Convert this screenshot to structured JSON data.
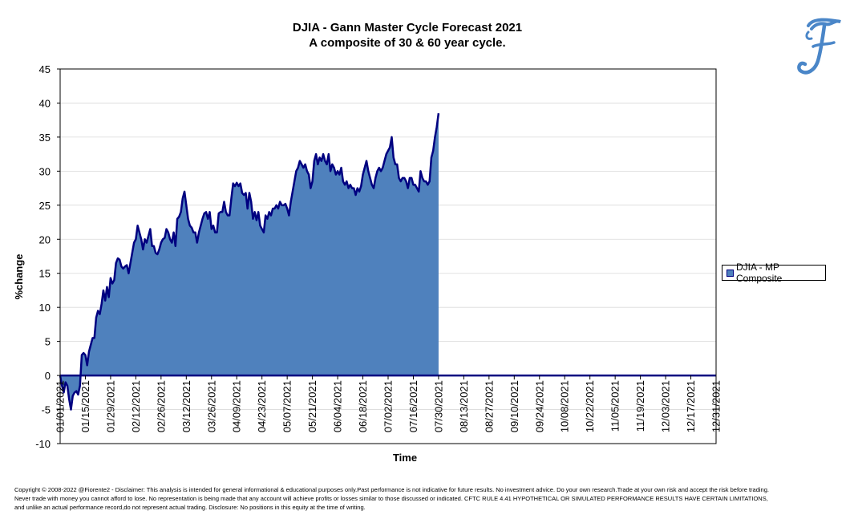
{
  "chart_data": {
    "type": "area",
    "title": "DJIA - Gann Master Cycle Forecast 2021",
    "subtitle": "A composite of 30 & 60 year cycle.",
    "xlabel": "Time",
    "ylabel": "%change",
    "ylim": [
      -10,
      45
    ],
    "yticks": [
      "45",
      "40",
      "35",
      "30",
      "25",
      "20",
      "15",
      "10",
      "5",
      "0",
      "-5",
      "-10"
    ],
    "xticks": [
      "01/01/2021",
      "01/15/2021",
      "01/29/2021",
      "02/12/2021",
      "02/26/2021",
      "03/12/2021",
      "03/26/2021",
      "04/09/2021",
      "04/23/2021",
      "05/07/2021",
      "05/21/2021",
      "06/04/2021",
      "06/18/2021",
      "07/02/2021",
      "07/16/2021",
      "07/30/2021",
      "08/13/2021",
      "08/27/2021",
      "09/10/2021",
      "09/24/2021",
      "10/08/2021",
      "10/22/2021",
      "11/05/2021",
      "11/19/2021",
      "12/03/2021",
      "12/17/2021",
      "12/31/2021"
    ],
    "legend": "right",
    "grid": true,
    "colors": {
      "fill": "#4f81bd",
      "line": "#000080"
    },
    "series": [
      {
        "name": "DJIA - MP Composite",
        "points": [
          [
            "01/01/2021",
            0
          ],
          [
            "01/02/2021",
            -1.5
          ],
          [
            "01/03/2021",
            -2.5
          ],
          [
            "01/04/2021",
            -1
          ],
          [
            "01/05/2021",
            -1.5
          ],
          [
            "01/06/2021",
            -3.5
          ],
          [
            "01/07/2021",
            -5
          ],
          [
            "01/08/2021",
            -3
          ],
          [
            "01/09/2021",
            -2.5
          ],
          [
            "01/10/2021",
            -2.3
          ],
          [
            "01/11/2021",
            -2.8
          ],
          [
            "01/12/2021",
            -1.5
          ],
          [
            "01/13/2021",
            3
          ],
          [
            "01/14/2021",
            3.3
          ],
          [
            "01/15/2021",
            3
          ],
          [
            "01/16/2021",
            1.5
          ],
          [
            "01/17/2021",
            3.5
          ],
          [
            "01/18/2021",
            4.5
          ],
          [
            "01/19/2021",
            5.5
          ],
          [
            "01/20/2021",
            5.5
          ],
          [
            "01/21/2021",
            8.5
          ],
          [
            "01/22/2021",
            9.5
          ],
          [
            "01/23/2021",
            9
          ],
          [
            "01/24/2021",
            10.5
          ],
          [
            "01/25/2021",
            12.5
          ],
          [
            "01/26/2021",
            11
          ],
          [
            "01/27/2021",
            13
          ],
          [
            "01/28/2021",
            11.5
          ],
          [
            "01/29/2021",
            14.3
          ],
          [
            "01/30/2021",
            13.5
          ],
          [
            "01/31/2021",
            14
          ],
          [
            "02/01/2021",
            16.5
          ],
          [
            "02/02/2021",
            17.2
          ],
          [
            "02/03/2021",
            17
          ],
          [
            "02/04/2021",
            16
          ],
          [
            "02/05/2021",
            15.7
          ],
          [
            "02/06/2021",
            16
          ],
          [
            "02/07/2021",
            16.2
          ],
          [
            "02/08/2021",
            15
          ],
          [
            "02/09/2021",
            16.5
          ],
          [
            "02/10/2021",
            18
          ],
          [
            "02/11/2021",
            19.5
          ],
          [
            "02/12/2021",
            20
          ],
          [
            "02/13/2021",
            22
          ],
          [
            "02/14/2021",
            21
          ],
          [
            "02/15/2021",
            20
          ],
          [
            "02/16/2021",
            18.5
          ],
          [
            "02/17/2021",
            20
          ],
          [
            "02/18/2021",
            19.5
          ],
          [
            "02/19/2021",
            20.5
          ],
          [
            "02/20/2021",
            21.5
          ],
          [
            "02/21/2021",
            19
          ],
          [
            "02/22/2021",
            19
          ],
          [
            "02/23/2021",
            18
          ],
          [
            "02/24/2021",
            17.8
          ],
          [
            "02/25/2021",
            18.5
          ],
          [
            "02/26/2021",
            19.5
          ],
          [
            "02/27/2021",
            20
          ],
          [
            "02/28/2021",
            20.2
          ],
          [
            "03/01/2021",
            21.5
          ],
          [
            "03/02/2021",
            21
          ],
          [
            "03/03/2021",
            20
          ],
          [
            "03/04/2021",
            19.5
          ],
          [
            "03/05/2021",
            21
          ],
          [
            "03/06/2021",
            19
          ],
          [
            "03/07/2021",
            23
          ],
          [
            "03/08/2021",
            23.3
          ],
          [
            "03/09/2021",
            24
          ],
          [
            "03/10/2021",
            26
          ],
          [
            "03/11/2021",
            27
          ],
          [
            "03/12/2021",
            25
          ],
          [
            "03/13/2021",
            23
          ],
          [
            "03/14/2021",
            22
          ],
          [
            "03/15/2021",
            21.7
          ],
          [
            "03/16/2021",
            21
          ],
          [
            "03/17/2021",
            21
          ],
          [
            "03/18/2021",
            19.5
          ],
          [
            "03/19/2021",
            21
          ],
          [
            "03/20/2021",
            22
          ],
          [
            "03/21/2021",
            23
          ],
          [
            "03/22/2021",
            23.8
          ],
          [
            "03/23/2021",
            24
          ],
          [
            "03/24/2021",
            23
          ],
          [
            "03/25/2021",
            24
          ],
          [
            "03/26/2021",
            21.5
          ],
          [
            "03/27/2021",
            22
          ],
          [
            "03/28/2021",
            21
          ],
          [
            "03/29/2021",
            21
          ],
          [
            "03/30/2021",
            23.8
          ],
          [
            "03/31/2021",
            24
          ],
          [
            "04/01/2021",
            24
          ],
          [
            "04/02/2021",
            25.5
          ],
          [
            "04/03/2021",
            24
          ],
          [
            "04/04/2021",
            23.5
          ],
          [
            "04/05/2021",
            23.5
          ],
          [
            "04/06/2021",
            26
          ],
          [
            "04/07/2021",
            28.2
          ],
          [
            "04/08/2021",
            27.8
          ],
          [
            "04/09/2021",
            28.3
          ],
          [
            "04/10/2021",
            27.8
          ],
          [
            "04/11/2021",
            28.2
          ],
          [
            "04/12/2021",
            26.8
          ],
          [
            "04/13/2021",
            26.5
          ],
          [
            "04/14/2021",
            26.8
          ],
          [
            "04/15/2021",
            24.5
          ],
          [
            "04/16/2021",
            26.8
          ],
          [
            "04/17/2021",
            25.5
          ],
          [
            "04/18/2021",
            23
          ],
          [
            "04/19/2021",
            24
          ],
          [
            "04/20/2021",
            22.8
          ],
          [
            "04/21/2021",
            24
          ],
          [
            "04/22/2021",
            22
          ],
          [
            "04/23/2021",
            21.5
          ],
          [
            "04/24/2021",
            21
          ],
          [
            "04/25/2021",
            23.5
          ],
          [
            "04/26/2021",
            23
          ],
          [
            "04/27/2021",
            24
          ],
          [
            "04/28/2021",
            23.5
          ],
          [
            "04/29/2021",
            24.5
          ],
          [
            "04/30/2021",
            24.5
          ],
          [
            "05/01/2021",
            25
          ],
          [
            "05/02/2021",
            24.5
          ],
          [
            "05/03/2021",
            25.5
          ],
          [
            "05/04/2021",
            25
          ],
          [
            "05/05/2021",
            25
          ],
          [
            "05/06/2021",
            25.2
          ],
          [
            "05/07/2021",
            24.5
          ],
          [
            "05/08/2021",
            23.5
          ],
          [
            "05/09/2021",
            25.5
          ],
          [
            "05/10/2021",
            27
          ],
          [
            "05/11/2021",
            28.5
          ],
          [
            "05/12/2021",
            30
          ],
          [
            "05/13/2021",
            30.5
          ],
          [
            "05/14/2021",
            31.5
          ],
          [
            "05/15/2021",
            31
          ],
          [
            "05/16/2021",
            30.5
          ],
          [
            "05/17/2021",
            31
          ],
          [
            "05/18/2021",
            30
          ],
          [
            "05/19/2021",
            29.5
          ],
          [
            "05/20/2021",
            27.5
          ],
          [
            "05/21/2021",
            28.5
          ],
          [
            "05/22/2021",
            31.5
          ],
          [
            "05/23/2021",
            32.5
          ],
          [
            "05/24/2021",
            31
          ],
          [
            "05/25/2021",
            32
          ],
          [
            "05/26/2021",
            31.5
          ],
          [
            "05/27/2021",
            32.5
          ],
          [
            "05/28/2021",
            31.5
          ],
          [
            "05/29/2021",
            31
          ],
          [
            "05/30/2021",
            32.5
          ],
          [
            "05/31/2021",
            30
          ],
          [
            "06/01/2021",
            31
          ],
          [
            "06/02/2021",
            30.5
          ],
          [
            "06/03/2021",
            29.5
          ],
          [
            "06/04/2021",
            30
          ],
          [
            "06/05/2021",
            29.5
          ],
          [
            "06/06/2021",
            30.5
          ],
          [
            "06/07/2021",
            28.5
          ],
          [
            "06/08/2021",
            28
          ],
          [
            "06/09/2021",
            28.5
          ],
          [
            "06/10/2021",
            27.5
          ],
          [
            "06/11/2021",
            28
          ],
          [
            "06/12/2021",
            27.5
          ],
          [
            "06/13/2021",
            27.5
          ],
          [
            "06/14/2021",
            26.5
          ],
          [
            "06/15/2021",
            27.5
          ],
          [
            "06/16/2021",
            27
          ],
          [
            "06/17/2021",
            27.8
          ],
          [
            "06/18/2021",
            29.5
          ],
          [
            "06/19/2021",
            30.5
          ],
          [
            "06/20/2021",
            31.5
          ],
          [
            "06/21/2021",
            30
          ],
          [
            "06/22/2021",
            29
          ],
          [
            "06/23/2021",
            28
          ],
          [
            "06/24/2021",
            27.5
          ],
          [
            "06/25/2021",
            29
          ],
          [
            "06/26/2021",
            30
          ],
          [
            "06/27/2021",
            30.5
          ],
          [
            "06/28/2021",
            30
          ],
          [
            "06/29/2021",
            30.5
          ],
          [
            "06/30/2021",
            31.5
          ],
          [
            "07/01/2021",
            32.5
          ],
          [
            "07/02/2021",
            33
          ],
          [
            "07/03/2021",
            33.5
          ],
          [
            "07/04/2021",
            35
          ],
          [
            "07/05/2021",
            32
          ],
          [
            "07/06/2021",
            31
          ],
          [
            "07/07/2021",
            31
          ],
          [
            "07/08/2021",
            29
          ],
          [
            "07/09/2021",
            28.5
          ],
          [
            "07/10/2021",
            29
          ],
          [
            "07/11/2021",
            29
          ],
          [
            "07/12/2021",
            28.5
          ],
          [
            "07/13/2021",
            27.5
          ],
          [
            "07/14/2021",
            29
          ],
          [
            "07/15/2021",
            29
          ],
          [
            "07/16/2021",
            28
          ],
          [
            "07/17/2021",
            28
          ],
          [
            "07/18/2021",
            27.5
          ],
          [
            "07/19/2021",
            27
          ],
          [
            "07/20/2021",
            30
          ],
          [
            "07/21/2021",
            29
          ],
          [
            "07/22/2021",
            28.5
          ],
          [
            "07/23/2021",
            28.5
          ],
          [
            "07/24/2021",
            28
          ],
          [
            "07/25/2021",
            28.5
          ],
          [
            "07/26/2021",
            32
          ],
          [
            "07/27/2021",
            33
          ],
          [
            "07/28/2021",
            35
          ],
          [
            "07/29/2021",
            36.5
          ],
          [
            "07/30/2021",
            38.5
          ]
        ]
      }
    ]
  },
  "logo": {
    "text": "F",
    "color": "#4a86c8"
  },
  "footer": {
    "line1": "Copyright © 2008-2022 @Fiorente2 -  Disclaimer: This analysis is intended for general informational & educational purposes only.Past performance is not indicative for future results. No investment advice.  Do your own research.Trade at your own risk and accept the risk before trading.",
    "line2": "Never trade with money you cannot afford to lose. No representation is being made that any account will achieve profits or losses  similar to those discussed or indicated. CFTC RULE 4.41 HYPOTHETICAL OR SIMULATED PERFORMANCE RESULTS HAVE CERTAIN LIMITATIONS,",
    "line3": "and unlike an actual performance record,do not represent actual trading. Disclosure: No positions in this equity at the time of writing."
  }
}
